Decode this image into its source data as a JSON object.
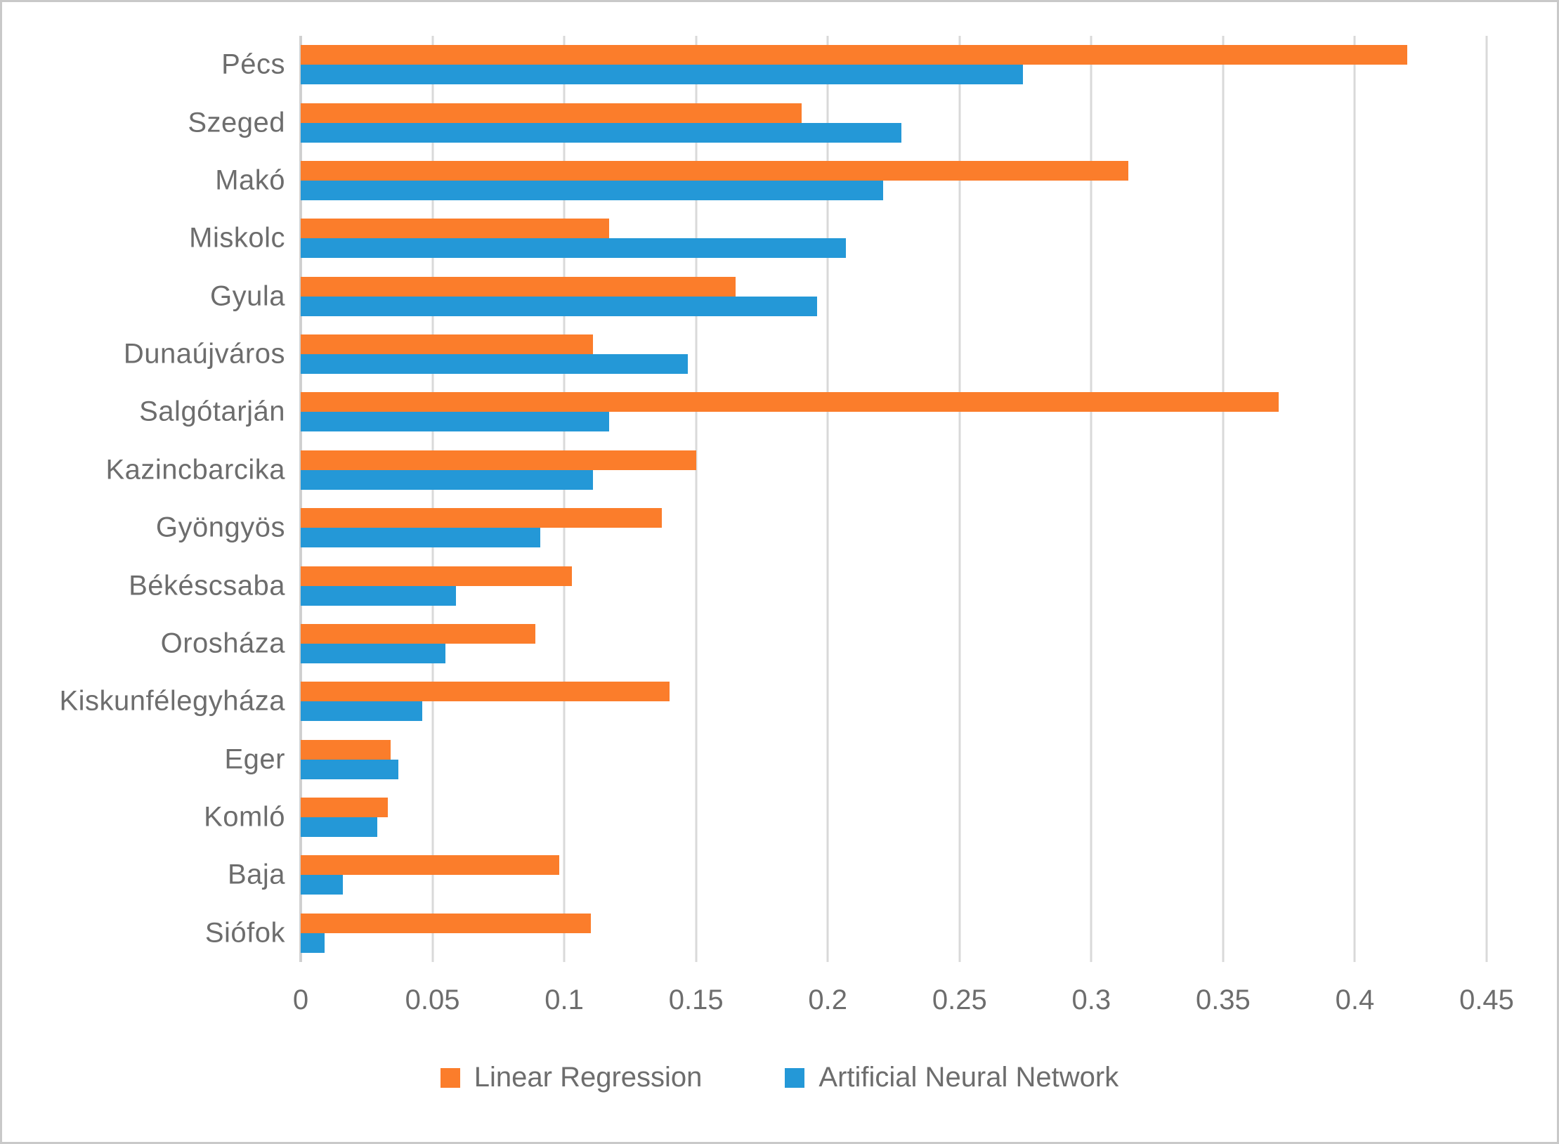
{
  "chart_data": {
    "type": "bar",
    "orientation": "horizontal",
    "title": "",
    "xlabel": "",
    "ylabel": "",
    "grid": "vertical",
    "legend_position": "bottom",
    "xlim": [
      0,
      0.45
    ],
    "xticks": [
      0,
      0.05,
      0.1,
      0.15,
      0.2,
      0.25,
      0.3,
      0.35,
      0.4,
      0.45
    ],
    "xtick_labels": [
      "0",
      "0.05",
      "0.1",
      "0.15",
      "0.2",
      "0.25",
      "0.3",
      "0.35",
      "0.4",
      "0.45"
    ],
    "categories": [
      "Pécs",
      "Szeged",
      "Makó",
      "Miskolc",
      "Gyula",
      "Dunaújváros",
      "Salgótarján",
      "Kazincbarcika",
      "Gyöngyös",
      "Békéscsaba",
      "Orosháza",
      "Kiskunfélegyháza",
      "Eger",
      "Komló",
      "Baja",
      "Siófok"
    ],
    "series": [
      {
        "name": "Linear Regression",
        "color": "#fb7d2b",
        "values": [
          0.42,
          0.19,
          0.314,
          0.117,
          0.165,
          0.111,
          0.371,
          0.15,
          0.137,
          0.103,
          0.089,
          0.14,
          0.034,
          0.033,
          0.098,
          0.11
        ]
      },
      {
        "name": "Artificial Neural Network",
        "color": "#2498d7",
        "values": [
          0.274,
          0.228,
          0.221,
          0.207,
          0.196,
          0.147,
          0.117,
          0.111,
          0.091,
          0.059,
          0.055,
          0.046,
          0.037,
          0.029,
          0.016,
          0.009
        ]
      }
    ]
  },
  "colors": {
    "gridline": "#d9d9d9",
    "axis_line": "#d0d0d0",
    "label_text": "#6d6d6d",
    "frame_border": "#c9c9c9",
    "background": "#ffffff"
  }
}
